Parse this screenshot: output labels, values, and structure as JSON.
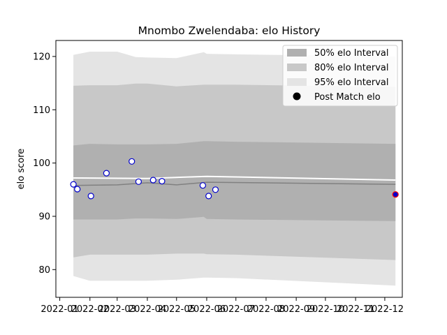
{
  "chart_data": {
    "type": "line",
    "title": "Mnombo Zwelendaba: elo History",
    "xlabel": "",
    "ylabel": "elo score",
    "xlim": [
      "2021-12-28",
      "2022-12-19"
    ],
    "ylim": [
      74.8,
      123
    ],
    "x_ticks": [
      "2022-01",
      "2022-02",
      "2022-03",
      "2022-04",
      "2022-05",
      "2022-06",
      "2022-07",
      "2022-08",
      "2022-09",
      "2022-10",
      "2022-11",
      "2022-12"
    ],
    "y_ticks": [
      80,
      90,
      100,
      110,
      120
    ],
    "grid": false,
    "legend_position": "top-right",
    "colors": {
      "band_50": "#b0b0b0",
      "band_80": "#c8c8c8",
      "band_95": "#e4e4e4",
      "mean_line": "#808080",
      "post_line": "#ffffff",
      "point_edge": "#0000cc",
      "final_point_fill": "#0000cc",
      "final_point_edge": "#ff0000"
    },
    "legend": [
      {
        "label": "50% elo Interval",
        "kind": "band_50"
      },
      {
        "label": "80% elo Interval",
        "kind": "band_80"
      },
      {
        "label": "95% elo Interval",
        "kind": "band_95"
      },
      {
        "label": "Post Match elo",
        "kind": "marker"
      }
    ],
    "bands": {
      "x": [
        "2022-01-15",
        "2022-02-01",
        "2022-03-01",
        "2022-03-20",
        "2022-04-01",
        "2022-05-01",
        "2022-05-29",
        "2022-06-01",
        "2022-07-01",
        "2022-12-12"
      ],
      "p95_upper": [
        120.3,
        120.9,
        120.9,
        119.9,
        119.8,
        119.7,
        120.8,
        120.5,
        120.4,
        120.0
      ],
      "p80_upper": [
        114.5,
        114.6,
        114.6,
        114.9,
        114.9,
        114.4,
        114.7,
        114.7,
        114.7,
        114.3
      ],
      "p50_upper": [
        103.3,
        103.6,
        103.5,
        103.5,
        103.5,
        103.6,
        104.1,
        104.1,
        104.0,
        103.6
      ],
      "p50_lower": [
        89.4,
        89.4,
        89.4,
        89.6,
        89.6,
        89.5,
        89.9,
        89.5,
        89.4,
        89.1
      ],
      "p80_lower": [
        82.3,
        82.8,
        82.8,
        82.8,
        82.8,
        83.0,
        83.0,
        82.9,
        82.8,
        81.8
      ],
      "p95_lower": [
        78.8,
        77.9,
        77.9,
        77.9,
        77.9,
        78.1,
        78.5,
        78.5,
        78.4,
        77.0
      ]
    },
    "mean_line": {
      "x": [
        "2022-01-15",
        "2022-03-01",
        "2022-04-01",
        "2022-05-01",
        "2022-06-01",
        "2022-12-12"
      ],
      "y": [
        95.8,
        95.9,
        96.3,
        95.9,
        96.4,
        96.0
      ]
    },
    "post_line": {
      "x": [
        "2022-01-15",
        "2022-04-01",
        "2022-06-01",
        "2022-12-12"
      ],
      "y": [
        97.2,
        97.1,
        97.5,
        96.8
      ]
    },
    "post_match_points": [
      {
        "x": "2022-01-15",
        "y": 96.0
      },
      {
        "x": "2022-01-19",
        "y": 95.1
      },
      {
        "x": "2022-02-02",
        "y": 93.8
      },
      {
        "x": "2022-02-18",
        "y": 98.1
      },
      {
        "x": "2022-03-16",
        "y": 100.3
      },
      {
        "x": "2022-03-23",
        "y": 96.5
      },
      {
        "x": "2022-04-07",
        "y": 96.8
      },
      {
        "x": "2022-04-16",
        "y": 96.6
      },
      {
        "x": "2022-05-28",
        "y": 95.8
      },
      {
        "x": "2022-06-03",
        "y": 93.8
      },
      {
        "x": "2022-06-10",
        "y": 95.0
      },
      {
        "x": "2022-12-12",
        "y": 94.1,
        "final": true
      }
    ]
  }
}
